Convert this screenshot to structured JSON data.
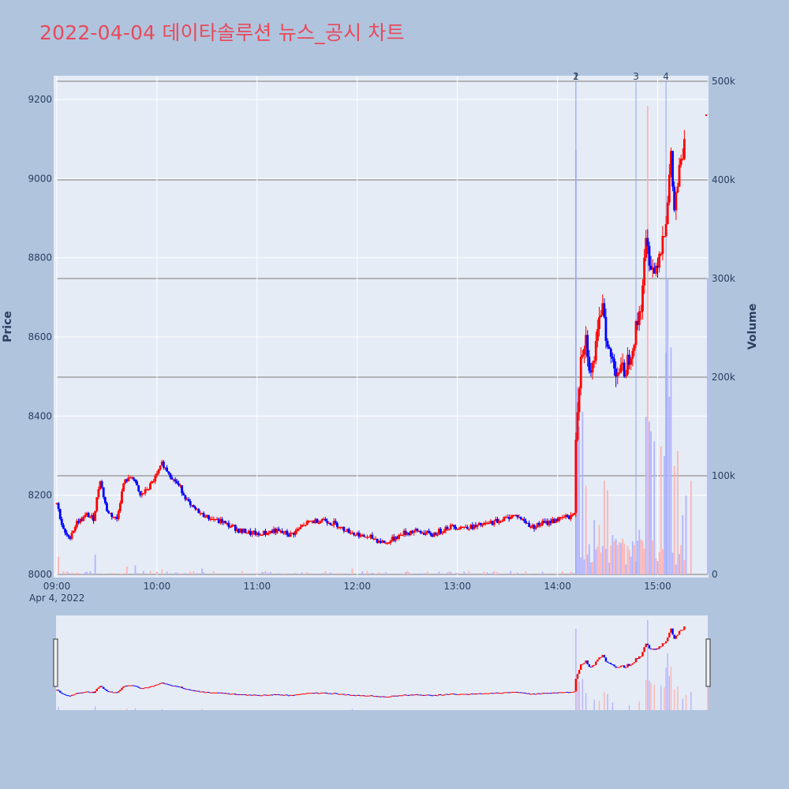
{
  "title": "2022-04-04 데이타솔루션 뉴스_공시 차트",
  "colors": {
    "background": "#b0c4de",
    "plot_bg": "#e5ecf6",
    "title": "#e8495a",
    "up": "#ff0000",
    "down": "#0000ff",
    "vol_up": "#ffb3b3",
    "vol_down": "#b3b3ff",
    "marker_line": "#8fa6f0",
    "volume_grid": "#a0a0a0"
  },
  "chart_data": {
    "type": "candlestick",
    "title": "2022-04-04 데이타솔루션 뉴스_공시 차트",
    "ylabel": "Price",
    "y2label": "Volume",
    "xlabel": "",
    "date_label": "Apr 4, 2022",
    "x_range": [
      "09:00",
      "15:30"
    ],
    "ylim": [
      8000,
      9260
    ],
    "y2lim": [
      0,
      500000
    ],
    "y_ticks": [
      8000,
      8200,
      8400,
      8600,
      8800,
      9000,
      9200
    ],
    "y_tick_labels": [
      "8000",
      "8200",
      "8400",
      "8600",
      "8800",
      "9000",
      "9200"
    ],
    "y2_ticks": [
      0,
      100000,
      200000,
      300000,
      400000,
      500000
    ],
    "y2_tick_labels": [
      "0",
      "100k",
      "200k",
      "300k",
      "400k",
      "500k"
    ],
    "x_ticks": [
      "09:00",
      "10:00",
      "11:00",
      "12:00",
      "13:00",
      "14:00",
      "15:00"
    ],
    "x_tick_labels": [
      "09:00",
      "10:00",
      "11:00",
      "12:00",
      "13:00",
      "14:00",
      "15:00"
    ],
    "markers": [
      {
        "label": "1",
        "time": "14:11"
      },
      {
        "label": "2",
        "time": "14:11"
      },
      {
        "label": "3",
        "time": "14:47"
      },
      {
        "label": "4",
        "time": "15:05"
      }
    ],
    "anchors": [
      [
        "09:00",
        8180
      ],
      [
        "09:04",
        8110
      ],
      [
        "09:07",
        8090
      ],
      [
        "09:12",
        8130
      ],
      [
        "09:18",
        8150
      ],
      [
        "09:22",
        8140
      ],
      [
        "09:26",
        8240
      ],
      [
        "09:30",
        8160
      ],
      [
        "09:36",
        8140
      ],
      [
        "09:40",
        8230
      ],
      [
        "09:45",
        8250
      ],
      [
        "09:50",
        8200
      ],
      [
        "09:55",
        8220
      ],
      [
        "10:00",
        8250
      ],
      [
        "10:03",
        8280
      ],
      [
        "10:08",
        8250
      ],
      [
        "10:14",
        8220
      ],
      [
        "10:20",
        8170
      ],
      [
        "10:28",
        8150
      ],
      [
        "10:40",
        8130
      ],
      [
        "10:50",
        8110
      ],
      [
        "11:00",
        8100
      ],
      [
        "11:10",
        8110
      ],
      [
        "11:20",
        8100
      ],
      [
        "11:30",
        8130
      ],
      [
        "11:40",
        8140
      ],
      [
        "11:50",
        8120
      ],
      [
        "12:00",
        8100
      ],
      [
        "12:10",
        8090
      ],
      [
        "12:18",
        8080
      ],
      [
        "12:25",
        8100
      ],
      [
        "12:35",
        8110
      ],
      [
        "12:45",
        8100
      ],
      [
        "12:55",
        8120
      ],
      [
        "13:10",
        8120
      ],
      [
        "13:20",
        8130
      ],
      [
        "13:35",
        8150
      ],
      [
        "13:45",
        8120
      ],
      [
        "14:00",
        8140
      ],
      [
        "14:10",
        8150
      ],
      [
        "14:11",
        8350
      ],
      [
        "14:14",
        8560
      ],
      [
        "14:17",
        8600
      ],
      [
        "14:20",
        8500
      ],
      [
        "14:24",
        8600
      ],
      [
        "14:27",
        8700
      ],
      [
        "14:30",
        8570
      ],
      [
        "14:35",
        8520
      ],
      [
        "14:40",
        8510
      ],
      [
        "14:45",
        8580
      ],
      [
        "14:50",
        8680
      ],
      [
        "14:53",
        8840
      ],
      [
        "14:55",
        8800
      ],
      [
        "14:58",
        8760
      ],
      [
        "15:02",
        8830
      ],
      [
        "15:05",
        8900
      ],
      [
        "15:08",
        9050
      ],
      [
        "15:10",
        8920
      ],
      [
        "15:13",
        9020
      ],
      [
        "15:16",
        9080
      ]
    ],
    "volume_spikes": [
      [
        "09:01",
        18000
      ],
      [
        "09:23",
        20000
      ],
      [
        "09:42",
        8000
      ],
      [
        "09:47",
        9000
      ],
      [
        "10:03",
        5000
      ],
      [
        "10:27",
        6000
      ],
      [
        "11:57",
        6000
      ],
      [
        "14:11",
        430000
      ],
      [
        "14:12",
        190000
      ],
      [
        "14:13",
        150000
      ],
      [
        "14:15",
        165000
      ],
      [
        "14:17",
        90000
      ],
      [
        "14:22",
        55000
      ],
      [
        "14:25",
        50000
      ],
      [
        "14:28",
        95000
      ],
      [
        "14:30",
        85000
      ],
      [
        "14:33",
        40000
      ],
      [
        "14:43",
        25000
      ],
      [
        "14:49",
        45000
      ],
      [
        "14:53",
        160000
      ],
      [
        "14:54",
        475000
      ],
      [
        "14:55",
        155000
      ],
      [
        "14:56",
        145000
      ],
      [
        "14:58",
        135000
      ],
      [
        "15:02",
        130000
      ],
      [
        "15:04",
        120000
      ],
      [
        "15:05",
        225000
      ],
      [
        "15:06",
        300000
      ],
      [
        "15:07",
        180000
      ],
      [
        "15:08",
        230000
      ],
      [
        "15:10",
        110000
      ],
      [
        "15:12",
        125000
      ],
      [
        "15:15",
        60000
      ],
      [
        "15:17",
        80000
      ],
      [
        "15:20",
        95000
      ],
      [
        "15:30",
        300000
      ]
    ]
  }
}
